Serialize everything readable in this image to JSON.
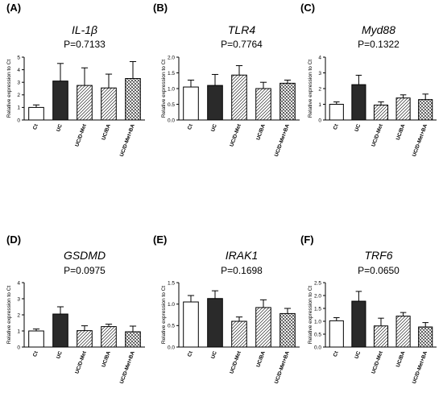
{
  "chart_data": [
    {
      "type": "bar",
      "panel_label": "(A)",
      "gene": "IL-1β",
      "p_value": "P=0.7133",
      "ylabel": "Relative expression to Ct",
      "categories": [
        "Ct",
        "UC",
        "UC/D-Met",
        "UC/BA",
        "UC/D-Met+BA"
      ],
      "values": [
        1.0,
        3.1,
        2.75,
        2.55,
        3.3
      ],
      "errors": [
        0.2,
        1.4,
        1.4,
        1.1,
        1.35
      ],
      "ylim": [
        0,
        5
      ],
      "yticks": [
        "0",
        "1",
        "2",
        "3",
        "4",
        "5"
      ],
      "fills": [
        "white",
        "black",
        "hatch",
        "hatch",
        "crosshatch"
      ]
    },
    {
      "type": "bar",
      "panel_label": "(B)",
      "gene": "TLR4",
      "p_value": "P=0.7764",
      "ylabel": "Relative expression to Ct",
      "categories": [
        "Ct",
        "UC",
        "UC/D-Met",
        "UC/BA",
        "UC/D-Met+BA"
      ],
      "values": [
        1.05,
        1.1,
        1.43,
        1.0,
        1.17
      ],
      "errors": [
        0.22,
        0.35,
        0.3,
        0.2,
        0.1
      ],
      "ylim": [
        0,
        2.0
      ],
      "yticks": [
        "0.0",
        "0.5",
        "1.0",
        "1.5",
        "2.0"
      ],
      "fills": [
        "white",
        "black",
        "hatch",
        "hatch",
        "crosshatch"
      ]
    },
    {
      "type": "bar",
      "panel_label": "(C)",
      "gene": "Myd88",
      "p_value": "P=0.1322",
      "ylabel": "Relative expression to Ct",
      "categories": [
        "Ct",
        "UC",
        "UC/D-Met",
        "UC/BA",
        "UC/D-Met+BA"
      ],
      "values": [
        1.0,
        2.25,
        0.95,
        1.4,
        1.3
      ],
      "errors": [
        0.15,
        0.6,
        0.2,
        0.2,
        0.35
      ],
      "ylim": [
        0,
        4
      ],
      "yticks": [
        "0",
        "1",
        "2",
        "3",
        "4"
      ],
      "fills": [
        "white",
        "black",
        "hatch",
        "hatch",
        "crosshatch"
      ]
    },
    {
      "type": "bar",
      "panel_label": "(D)",
      "gene": "GSDMD",
      "p_value": "P=0.0975",
      "ylabel": "Relative expression to Ct",
      "categories": [
        "Ct",
        "UC",
        "UC/D-Met",
        "UC/BA",
        "UC/D-Met+BA"
      ],
      "values": [
        1.0,
        2.05,
        1.02,
        1.27,
        0.95
      ],
      "errors": [
        0.12,
        0.45,
        0.3,
        0.15,
        0.35
      ],
      "ylim": [
        0,
        4
      ],
      "yticks": [
        "0",
        "1",
        "2",
        "3",
        "4"
      ],
      "fills": [
        "white",
        "black",
        "hatch",
        "hatch",
        "crosshatch"
      ]
    },
    {
      "type": "bar",
      "panel_label": "(E)",
      "gene": "IRAK1",
      "p_value": "P=0.1698",
      "ylabel": "Relative expression to Ct",
      "categories": [
        "Ct",
        "UC",
        "UC/D-Met",
        "UC/BA",
        "UC/D-Met+BA"
      ],
      "values": [
        1.05,
        1.13,
        0.6,
        0.92,
        0.78
      ],
      "errors": [
        0.15,
        0.18,
        0.1,
        0.18,
        0.12
      ],
      "ylim": [
        0,
        1.5
      ],
      "yticks": [
        "0.0",
        "0.5",
        "1.0",
        "1.5"
      ],
      "fills": [
        "white",
        "black",
        "hatch",
        "hatch",
        "crosshatch"
      ]
    },
    {
      "type": "bar",
      "panel_label": "(F)",
      "gene": "TRF6",
      "p_value": "P=0.0650",
      "ylabel": "Relative expression to Ct",
      "categories": [
        "Ct",
        "UC",
        "UC/D-Met",
        "UC/BA",
        "UC/D-Met+BA"
      ],
      "values": [
        1.02,
        1.78,
        0.82,
        1.2,
        0.78
      ],
      "errors": [
        0.12,
        0.38,
        0.3,
        0.14,
        0.17
      ],
      "ylim": [
        0,
        2.5
      ],
      "yticks": [
        "0.0",
        "0.5",
        "1.0",
        "1.5",
        "2.0",
        "2.5"
      ],
      "fills": [
        "white",
        "black",
        "hatch",
        "hatch",
        "crosshatch"
      ]
    }
  ]
}
